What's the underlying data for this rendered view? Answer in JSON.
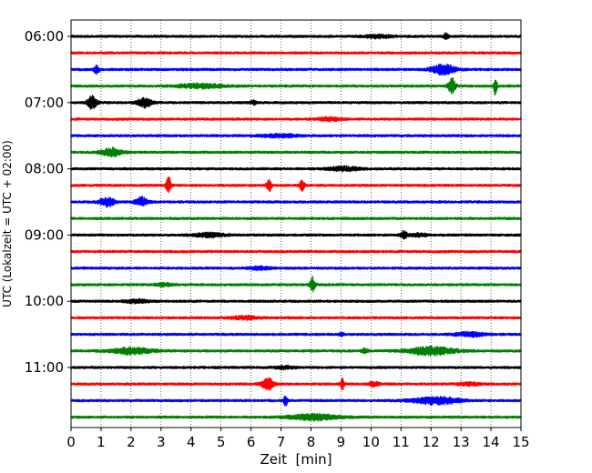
{
  "chart_data": {
    "type": "line",
    "title": "",
    "xlabel": "Zeit  [min]",
    "ylabel": "UTC (Lokalzeit = UTC + 02:00)",
    "xlim": [
      0,
      15
    ],
    "x_ticks": [
      0,
      1,
      2,
      3,
      4,
      5,
      6,
      7,
      8,
      9,
      10,
      11,
      12,
      13,
      14,
      15
    ],
    "y_tick_labels": [
      "06:00",
      "07:00",
      "08:00",
      "09:00",
      "10:00",
      "11:00"
    ],
    "grid": "vertical dotted at each minute",
    "row_start": "06:00",
    "row_interval_min": 15,
    "row_colors": [
      "#000000",
      "#ff0000",
      "#0000ff",
      "#008000"
    ],
    "rows": [
      {
        "time": "06:00",
        "color": "#000000",
        "events": [
          {
            "t": 10.2,
            "amp": 0.3,
            "w": 0.5
          },
          {
            "t": 12.5,
            "amp": 0.6,
            "w": 0.08
          }
        ]
      },
      {
        "time": "06:15",
        "color": "#ff0000",
        "events": []
      },
      {
        "time": "06:30",
        "color": "#0000ff",
        "events": [
          {
            "t": 0.85,
            "amp": 0.9,
            "w": 0.08
          },
          {
            "t": 12.4,
            "amp": 1.0,
            "w": 0.4
          }
        ]
      },
      {
        "time": "06:45",
        "color": "#008000",
        "events": [
          {
            "t": 4.3,
            "amp": 0.4,
            "w": 0.8
          },
          {
            "t": 12.7,
            "amp": 1.6,
            "w": 0.12
          },
          {
            "t": 14.15,
            "amp": 2.1,
            "w": 0.05
          }
        ]
      },
      {
        "time": "07:00",
        "color": "#000000",
        "events": [
          {
            "t": 0.7,
            "amp": 1.3,
            "w": 0.15
          },
          {
            "t": 2.45,
            "amp": 0.9,
            "w": 0.25
          },
          {
            "t": 6.1,
            "amp": 0.45,
            "w": 0.1
          }
        ]
      },
      {
        "time": "07:15",
        "color": "#ff0000",
        "events": [
          {
            "t": 8.6,
            "amp": 0.3,
            "w": 0.4
          }
        ]
      },
      {
        "time": "07:30",
        "color": "#0000ff",
        "events": [
          {
            "t": 7.0,
            "amp": 0.3,
            "w": 0.6
          }
        ]
      },
      {
        "time": "07:45",
        "color": "#008000",
        "events": [
          {
            "t": 1.35,
            "amp": 0.8,
            "w": 0.35
          }
        ]
      },
      {
        "time": "08:00",
        "color": "#000000",
        "events": [
          {
            "t": 9.1,
            "amp": 0.4,
            "w": 0.5
          }
        ]
      },
      {
        "time": "08:15",
        "color": "#ff0000",
        "events": [
          {
            "t": 3.25,
            "amp": 1.8,
            "w": 0.08
          },
          {
            "t": 6.6,
            "amp": 1.2,
            "w": 0.08
          },
          {
            "t": 7.7,
            "amp": 1.1,
            "w": 0.08
          }
        ]
      },
      {
        "time": "08:30",
        "color": "#0000ff",
        "events": [
          {
            "t": 1.2,
            "amp": 0.9,
            "w": 0.25
          },
          {
            "t": 2.35,
            "amp": 0.9,
            "w": 0.2
          }
        ]
      },
      {
        "time": "08:45",
        "color": "#008000",
        "events": []
      },
      {
        "time": "09:00",
        "color": "#000000",
        "events": [
          {
            "t": 4.6,
            "amp": 0.4,
            "w": 0.5
          },
          {
            "t": 11.1,
            "amp": 0.8,
            "w": 0.1
          },
          {
            "t": 11.6,
            "amp": 0.3,
            "w": 0.3
          }
        ]
      },
      {
        "time": "09:15",
        "color": "#ff0000",
        "events": []
      },
      {
        "time": "09:30",
        "color": "#0000ff",
        "events": [
          {
            "t": 6.3,
            "amp": 0.3,
            "w": 0.4
          }
        ]
      },
      {
        "time": "09:45",
        "color": "#008000",
        "events": [
          {
            "t": 8.05,
            "amp": 1.6,
            "w": 0.08
          },
          {
            "t": 3.1,
            "amp": 0.3,
            "w": 0.3
          }
        ]
      },
      {
        "time": "10:00",
        "color": "#000000",
        "events": [
          {
            "t": 2.2,
            "amp": 0.3,
            "w": 0.4
          }
        ]
      },
      {
        "time": "10:15",
        "color": "#ff0000",
        "events": [
          {
            "t": 5.8,
            "amp": 0.35,
            "w": 0.4
          }
        ]
      },
      {
        "time": "10:30",
        "color": "#0000ff",
        "events": [
          {
            "t": 13.3,
            "amp": 0.4,
            "w": 0.5
          },
          {
            "t": 9.0,
            "amp": 0.3,
            "w": 0.1
          }
        ]
      },
      {
        "time": "10:45",
        "color": "#008000",
        "events": [
          {
            "t": 2.0,
            "amp": 0.6,
            "w": 0.7
          },
          {
            "t": 9.8,
            "amp": 0.45,
            "w": 0.1
          },
          {
            "t": 12.0,
            "amp": 0.8,
            "w": 0.8
          }
        ]
      },
      {
        "time": "11:00",
        "color": "#000000",
        "events": [
          {
            "t": 7.1,
            "amp": 0.3,
            "w": 0.3
          }
        ]
      },
      {
        "time": "11:15",
        "color": "#ff0000",
        "events": [
          {
            "t": 6.55,
            "amp": 1.2,
            "w": 0.2
          },
          {
            "t": 9.05,
            "amp": 1.1,
            "w": 0.06
          },
          {
            "t": 10.1,
            "amp": 0.5,
            "w": 0.15
          },
          {
            "t": 13.3,
            "amp": 0.3,
            "w": 0.4
          }
        ]
      },
      {
        "time": "11:30",
        "color": "#0000ff",
        "events": [
          {
            "t": 7.15,
            "amp": 1.2,
            "w": 0.06
          },
          {
            "t": 12.2,
            "amp": 0.7,
            "w": 0.8
          }
        ]
      },
      {
        "time": "11:45",
        "color": "#008000",
        "events": [
          {
            "t": 8.1,
            "amp": 0.6,
            "w": 0.8
          }
        ]
      }
    ]
  }
}
